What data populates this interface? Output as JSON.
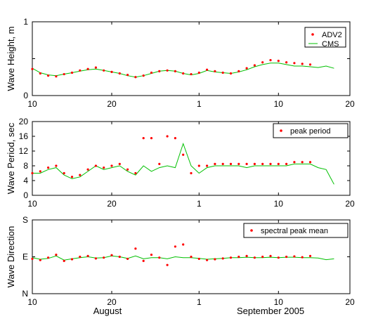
{
  "figure": {
    "date_labels": [
      "August",
      "September 2005"
    ]
  },
  "chart_data": [
    {
      "type": "scatter",
      "xlim": [
        10,
        50
      ],
      "x_ticks": [
        10,
        20,
        31,
        41,
        50
      ],
      "x_tick_labels": [
        "10",
        "20",
        "1",
        "10",
        "20"
      ],
      "ylim": [
        0,
        1
      ],
      "y_ticks": [
        0,
        0.5,
        1
      ],
      "y_tick_labels": [
        "0",
        "",
        "1"
      ],
      "ylabel": "Wave Height, m",
      "legend": "top-right",
      "series": [
        {
          "name": "ADV2",
          "mark": "point",
          "color": "#ff0000",
          "x": [
            10,
            11,
            12,
            13,
            14,
            15,
            16,
            17,
            18,
            19,
            20,
            21,
            22,
            23,
            24,
            25,
            26,
            27,
            28,
            29,
            30,
            31,
            32,
            33,
            34,
            35,
            36,
            37,
            38,
            39,
            40,
            41,
            42,
            43,
            44,
            45
          ],
          "values": [
            0.36,
            0.3,
            0.27,
            0.26,
            0.29,
            0.31,
            0.34,
            0.36,
            0.38,
            0.34,
            0.32,
            0.3,
            0.28,
            0.25,
            0.27,
            0.31,
            0.33,
            0.34,
            0.33,
            0.3,
            0.29,
            0.31,
            0.35,
            0.33,
            0.31,
            0.3,
            0.33,
            0.37,
            0.41,
            0.45,
            0.48,
            0.47,
            0.45,
            0.44,
            0.43,
            0.42
          ]
        },
        {
          "name": "CMS",
          "mark": "line",
          "color": "#00c000",
          "x": [
            10,
            11,
            12,
            13,
            14,
            15,
            16,
            17,
            18,
            19,
            20,
            21,
            22,
            23,
            24,
            25,
            26,
            27,
            28,
            29,
            30,
            31,
            32,
            33,
            34,
            35,
            36,
            37,
            38,
            39,
            40,
            41,
            42,
            43,
            44,
            45,
            46,
            47,
            48
          ],
          "values": [
            0.37,
            0.31,
            0.28,
            0.27,
            0.29,
            0.31,
            0.33,
            0.35,
            0.36,
            0.34,
            0.32,
            0.3,
            0.27,
            0.25,
            0.27,
            0.3,
            0.33,
            0.34,
            0.33,
            0.3,
            0.28,
            0.3,
            0.34,
            0.32,
            0.31,
            0.3,
            0.32,
            0.35,
            0.39,
            0.42,
            0.44,
            0.44,
            0.42,
            0.4,
            0.4,
            0.39,
            0.38,
            0.4,
            0.37
          ]
        }
      ]
    },
    {
      "type": "scatter",
      "xlim": [
        10,
        50
      ],
      "x_ticks": [
        10,
        20,
        31,
        41,
        50
      ],
      "x_tick_labels": [
        "10",
        "20",
        "1",
        "10",
        "20"
      ],
      "ylim": [
        0,
        20
      ],
      "y_ticks": [
        0,
        4,
        8,
        12,
        16,
        20
      ],
      "y_tick_labels": [
        "0",
        "4",
        "8",
        "12",
        "16",
        "20"
      ],
      "ylabel": "Wave Period, sec",
      "legend": "top-right",
      "series": [
        {
          "name": "peak period",
          "mark": "point",
          "color": "#ff0000",
          "x": [
            10,
            11,
            12,
            13,
            14,
            15,
            16,
            17,
            18,
            19,
            20,
            21,
            22,
            23,
            24,
            25,
            26,
            27,
            28,
            29,
            30,
            31,
            32,
            33,
            34,
            35,
            36,
            37,
            38,
            39,
            40,
            41,
            42,
            43,
            44,
            45
          ],
          "values": [
            6,
            6.5,
            7.5,
            8,
            6,
            5,
            5.5,
            7,
            8,
            7.5,
            8,
            8.5,
            7,
            6,
            15.5,
            15.5,
            8.5,
            16,
            15.5,
            11,
            6,
            8,
            8,
            8.5,
            8.5,
            8.5,
            8.5,
            8.5,
            8.5,
            8.5,
            8.5,
            8.5,
            8.5,
            9,
            9,
            9
          ]
        },
        {
          "name": "",
          "mark": "line",
          "color": "#00c000",
          "x": [
            10,
            11,
            12,
            13,
            14,
            15,
            16,
            17,
            18,
            19,
            20,
            21,
            22,
            23,
            24,
            25,
            26,
            27,
            28,
            29,
            30,
            31,
            32,
            33,
            34,
            35,
            36,
            37,
            38,
            39,
            40,
            41,
            42,
            43,
            44,
            45,
            46,
            47,
            48
          ],
          "values": [
            6,
            6,
            7,
            7.5,
            5.5,
            4.5,
            5,
            6.5,
            8,
            7,
            7.5,
            8,
            6.5,
            5.5,
            8,
            6.5,
            7.5,
            8,
            7.5,
            14,
            8,
            6,
            7.5,
            8,
            8,
            8,
            8,
            7.5,
            8,
            8,
            8,
            8,
            8,
            8.5,
            8.5,
            8.5,
            7.5,
            7,
            3
          ]
        }
      ]
    },
    {
      "type": "scatter",
      "xlim": [
        10,
        50
      ],
      "x_ticks": [
        10,
        20,
        31,
        41,
        50
      ],
      "x_tick_labels": [
        "10",
        "20",
        "1",
        "10",
        "20"
      ],
      "ylim": [
        0,
        180
      ],
      "y_ticks": [
        0,
        90,
        180
      ],
      "y_tick_labels": [
        "N",
        "E",
        "S"
      ],
      "ylabel": "Wave Direction",
      "legend": "top-right",
      "series": [
        {
          "name": "spectral peak mean",
          "mark": "point",
          "color": "#ff0000",
          "x": [
            10,
            11,
            12,
            13,
            14,
            15,
            16,
            17,
            18,
            19,
            20,
            21,
            22,
            23,
            24,
            25,
            26,
            27,
            28,
            29,
            30,
            31,
            32,
            33,
            34,
            35,
            36,
            37,
            38,
            39,
            40,
            41,
            42,
            43,
            44,
            45
          ],
          "values": [
            85,
            82,
            88,
            95,
            80,
            84,
            90,
            92,
            86,
            88,
            94,
            90,
            85,
            110,
            80,
            95,
            88,
            70,
            115,
            120,
            90,
            85,
            82,
            84,
            86,
            88,
            90,
            92,
            88,
            90,
            92,
            88,
            90,
            91,
            89,
            92
          ]
        },
        {
          "name": "",
          "mark": "line",
          "color": "#00c000",
          "x": [
            10,
            11,
            12,
            13,
            14,
            15,
            16,
            17,
            18,
            19,
            20,
            21,
            22,
            23,
            24,
            25,
            26,
            27,
            28,
            29,
            30,
            31,
            32,
            33,
            34,
            35,
            36,
            37,
            38,
            39,
            40,
            41,
            42,
            43,
            44,
            45,
            46,
            47,
            48
          ],
          "values": [
            88,
            84,
            86,
            92,
            82,
            85,
            88,
            90,
            87,
            88,
            92,
            90,
            86,
            92,
            85,
            88,
            88,
            85,
            90,
            88,
            88,
            86,
            84,
            85,
            86,
            88,
            88,
            89,
            88,
            88,
            89,
            88,
            89,
            89,
            88,
            88,
            87,
            83,
            85
          ]
        }
      ]
    }
  ]
}
